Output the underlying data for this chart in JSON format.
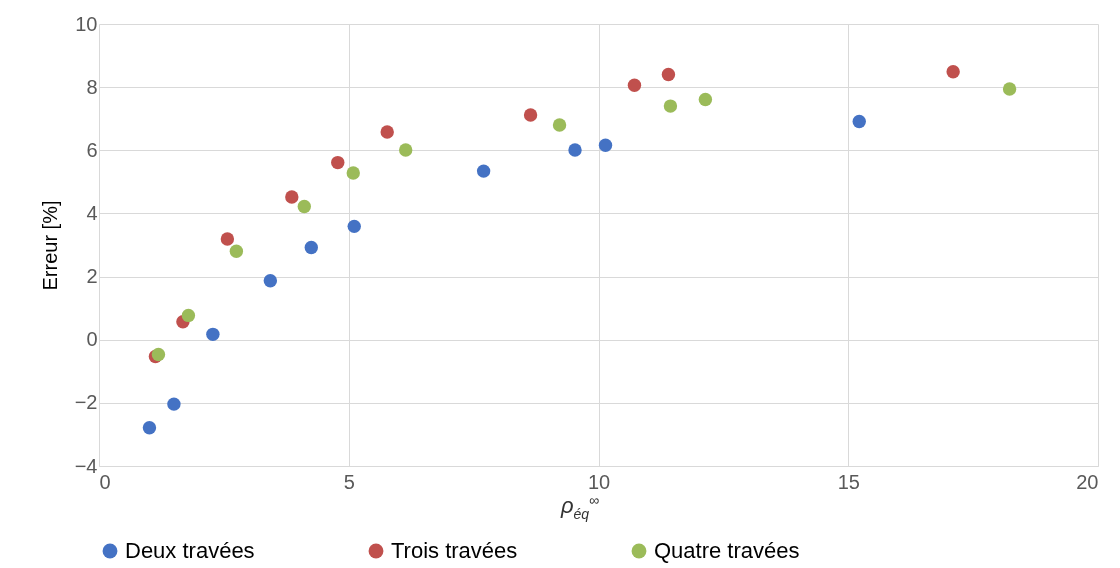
{
  "chart_data": {
    "type": "scatter",
    "xlabel": "ρ$_{éq}$$^{∞}$",
    "ylabel": "Erreur [%]",
    "xlim": [
      0,
      20
    ],
    "xticks": [
      0,
      5,
      10,
      15,
      20
    ],
    "ylim": [
      -4,
      10
    ],
    "yticks": [
      -4,
      -2,
      0,
      2,
      4,
      6,
      8,
      10
    ],
    "grid": true,
    "legend": "bottom",
    "marker": "circle",
    "series": [
      {
        "name": "Deux travées",
        "color": "#4472c4",
        "x": [
          1.01,
          1.5,
          2.28,
          3.43,
          4.25,
          5.11,
          7.7,
          9.53,
          10.14,
          15.22
        ],
        "values": [
          -2.79,
          -2.04,
          0.17,
          1.87,
          2.92,
          3.59,
          5.34,
          6.01,
          6.16,
          6.91
        ]
      },
      {
        "name": "Trois travées",
        "color": "#c0504d",
        "x": [
          1.13,
          1.68,
          2.57,
          3.86,
          4.78,
          5.77,
          8.64,
          10.72,
          11.4,
          17.1
        ],
        "values": [
          -0.53,
          0.57,
          3.19,
          4.52,
          5.61,
          6.58,
          7.12,
          8.06,
          8.4,
          8.49
        ]
      },
      {
        "name": "Quatre travées",
        "color": "#9bbb59",
        "x": [
          1.19,
          1.79,
          2.75,
          4.11,
          5.09,
          6.14,
          9.22,
          11.44,
          12.14,
          18.23
        ],
        "values": [
          -0.47,
          0.77,
          2.8,
          4.22,
          5.28,
          6.01,
          6.8,
          7.4,
          7.61,
          7.94
        ]
      }
    ]
  }
}
